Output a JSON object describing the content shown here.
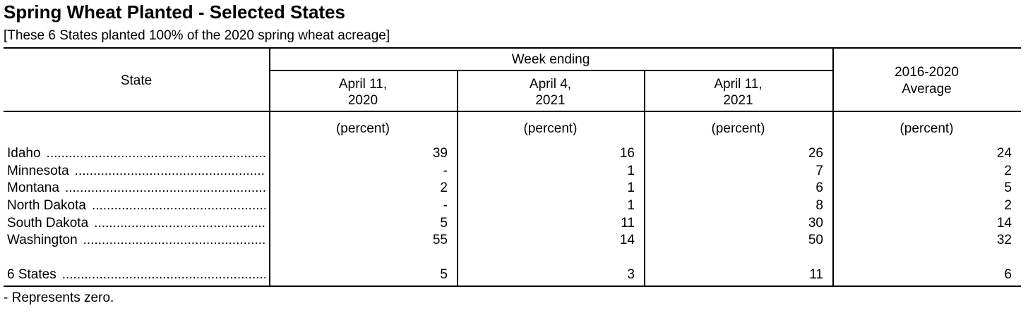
{
  "title": "Spring Wheat Planted - Selected States",
  "subtitle": "[These 6 States planted 100% of the 2020 spring wheat acreage]",
  "header": {
    "state": "State",
    "week_ending": "Week ending",
    "col1_line1": "April 11,",
    "col1_line2": "2020",
    "col2_line1": "April 4,",
    "col2_line2": "2021",
    "col3_line1": "April 11,",
    "col3_line2": "2021",
    "col4_line1": "2016-2020",
    "col4_line2": "Average"
  },
  "units": {
    "col1": "(percent)",
    "col2": "(percent)",
    "col3": "(percent)",
    "col4": "(percent)"
  },
  "rows": [
    {
      "state": "Idaho",
      "v1": "39",
      "v2": "16",
      "v3": "26",
      "v4": "24"
    },
    {
      "state": "Minnesota",
      "v1": "-",
      "v2": "1",
      "v3": "7",
      "v4": "2"
    },
    {
      "state": "Montana",
      "v1": "2",
      "v2": "1",
      "v3": "6",
      "v4": "5"
    },
    {
      "state": "North Dakota",
      "v1": "-",
      "v2": "1",
      "v3": "8",
      "v4": "2"
    },
    {
      "state": "South Dakota",
      "v1": "5",
      "v2": "11",
      "v3": "30",
      "v4": "14"
    },
    {
      "state": "Washington",
      "v1": "55",
      "v2": "14",
      "v3": "50",
      "v4": "32"
    }
  ],
  "total": {
    "state": "6 States",
    "v1": "5",
    "v2": "3",
    "v3": "11",
    "v4": "6"
  },
  "footnote": "- Represents zero."
}
